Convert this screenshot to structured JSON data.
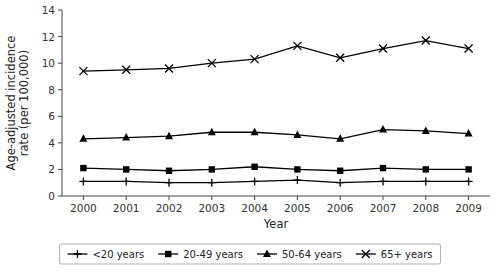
{
  "chart_data": {
    "type": "line",
    "x": [
      2000,
      2001,
      2002,
      2003,
      2004,
      2005,
      2006,
      2007,
      2008,
      2009
    ],
    "series": [
      {
        "name": "<20 years",
        "color": "black",
        "marker": "plus",
        "values": [
          1.1,
          1.1,
          1.0,
          1.0,
          1.1,
          1.2,
          1.0,
          1.1,
          1.1,
          1.1
        ]
      },
      {
        "name": "20-49 years",
        "color": "black",
        "marker": "square",
        "values": [
          2.1,
          2.0,
          1.9,
          2.0,
          2.2,
          2.0,
          1.9,
          2.1,
          2.0,
          2.0
        ]
      },
      {
        "name": "50-64 years",
        "color": "black",
        "marker": "triangle",
        "values": [
          4.3,
          4.4,
          4.5,
          4.8,
          4.8,
          4.6,
          4.3,
          5.0,
          4.9,
          4.7
        ]
      },
      {
        "name": "65+ years",
        "color": "black",
        "marker": "x",
        "values": [
          9.4,
          9.5,
          9.6,
          10.0,
          10.3,
          11.3,
          10.4,
          11.1,
          11.7,
          11.1
        ]
      }
    ],
    "xlabel": "Year",
    "ylabel": "Age-adjusted incidence\nrate (per 100,000)",
    "xlim": [
      1999.5,
      2009.5
    ],
    "xticks": [
      2000,
      2001,
      2002,
      2003,
      2004,
      2005,
      2006,
      2007,
      2008,
      2009
    ],
    "ylim": [
      0,
      14
    ],
    "yticks": [
      0,
      2,
      4,
      6,
      8,
      10,
      12,
      14
    ],
    "grid": false,
    "legend": "bottom"
  }
}
